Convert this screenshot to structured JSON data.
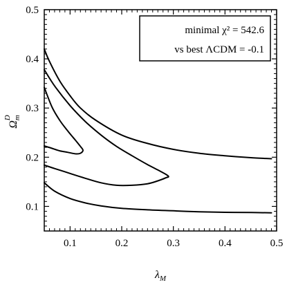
{
  "chart_data": {
    "type": "line",
    "title": "",
    "xlabel": "λ_M",
    "ylabel": "Ω_m^D",
    "xlim": [
      0.05,
      0.5
    ],
    "ylim": [
      0.05,
      0.5
    ],
    "xticks": [
      0.1,
      0.2,
      0.3,
      0.4,
      0.5
    ],
    "yticks": [
      0.1,
      0.2,
      0.3,
      0.4,
      0.5
    ],
    "grid": false,
    "annotations": {
      "line1": "minimal χ² = 542.6",
      "line2": "vs best ΛCDM = -0.1",
      "position": "top-right"
    },
    "series": [
      {
        "x": [
          0.05,
          0.06,
          0.08,
          0.1,
          0.12,
          0.15,
          0.2,
          0.25,
          0.3,
          0.35,
          0.4,
          0.45,
          0.49
        ],
        "y": [
          0.42,
          0.395,
          0.355,
          0.325,
          0.3,
          0.275,
          0.245,
          0.228,
          0.216,
          0.208,
          0.203,
          0.199,
          0.197
        ]
      },
      {
        "x": [
          0.05,
          0.07,
          0.1,
          0.13,
          0.16,
          0.19,
          0.22,
          0.25,
          0.27,
          0.29,
          0.285,
          0.27,
          0.25,
          0.22,
          0.19,
          0.16,
          0.13,
          0.1,
          0.07,
          0.05
        ],
        "y": [
          0.378,
          0.345,
          0.305,
          0.272,
          0.245,
          0.222,
          0.203,
          0.185,
          0.174,
          0.162,
          0.158,
          0.152,
          0.146,
          0.143,
          0.143,
          0.148,
          0.157,
          0.167,
          0.177,
          0.184
        ]
      },
      {
        "x": [
          0.05,
          0.065,
          0.08,
          0.095,
          0.11,
          0.12,
          0.125,
          0.12,
          0.11,
          0.095,
          0.08,
          0.065,
          0.05
        ],
        "y": [
          0.342,
          0.302,
          0.275,
          0.254,
          0.235,
          0.222,
          0.214,
          0.208,
          0.207,
          0.21,
          0.213,
          0.218,
          0.223
        ]
      },
      {
        "x": [
          0.05,
          0.07,
          0.1,
          0.13,
          0.16,
          0.2,
          0.25,
          0.3,
          0.35,
          0.4,
          0.45,
          0.49
        ],
        "y": [
          0.148,
          0.131,
          0.116,
          0.107,
          0.101,
          0.096,
          0.093,
          0.091,
          0.089,
          0.088,
          0.0875,
          0.087
        ]
      }
    ]
  }
}
